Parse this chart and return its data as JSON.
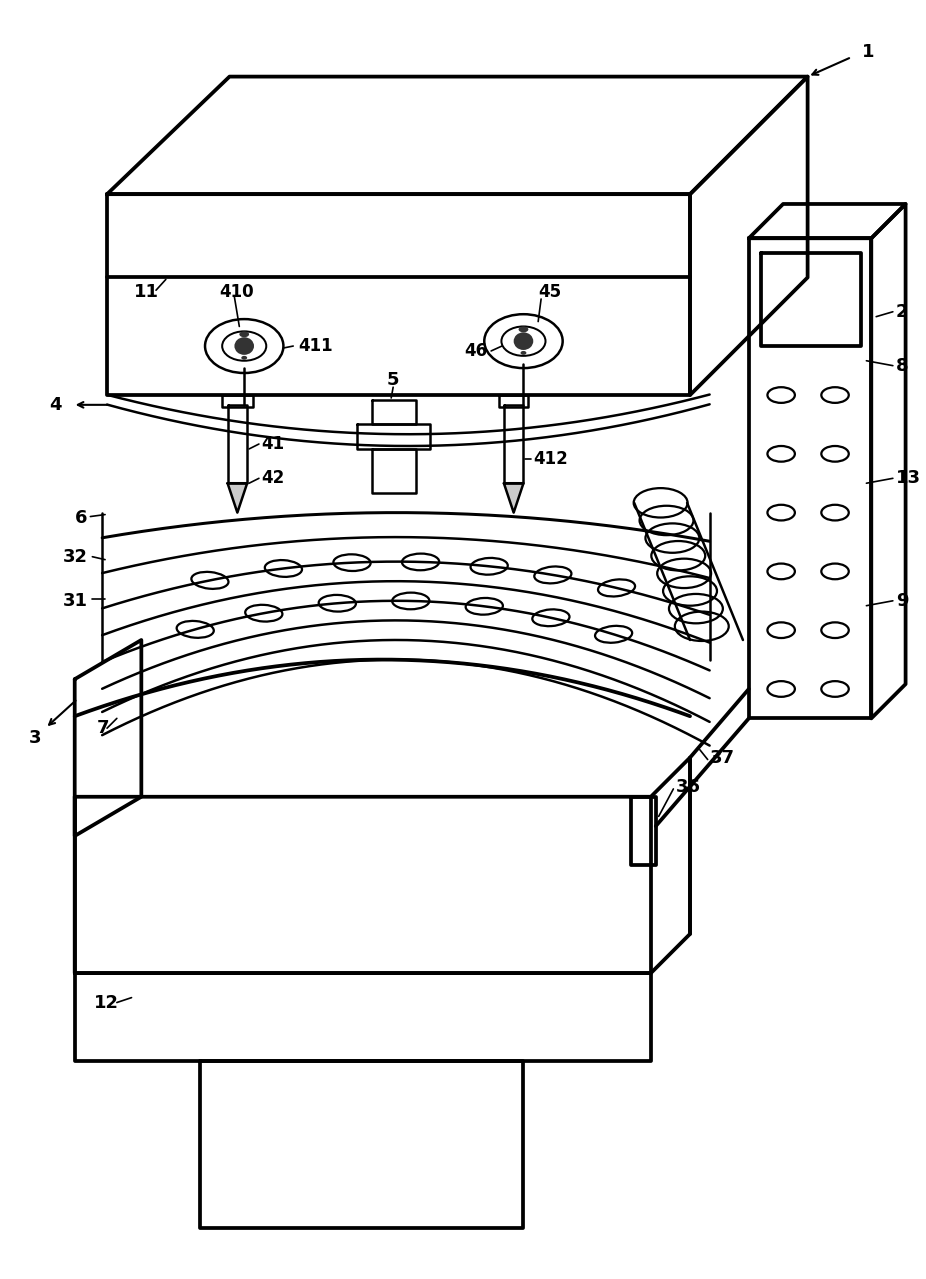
{
  "bg_color": "#ffffff",
  "line_color": "#000000",
  "line_width": 1.8
}
